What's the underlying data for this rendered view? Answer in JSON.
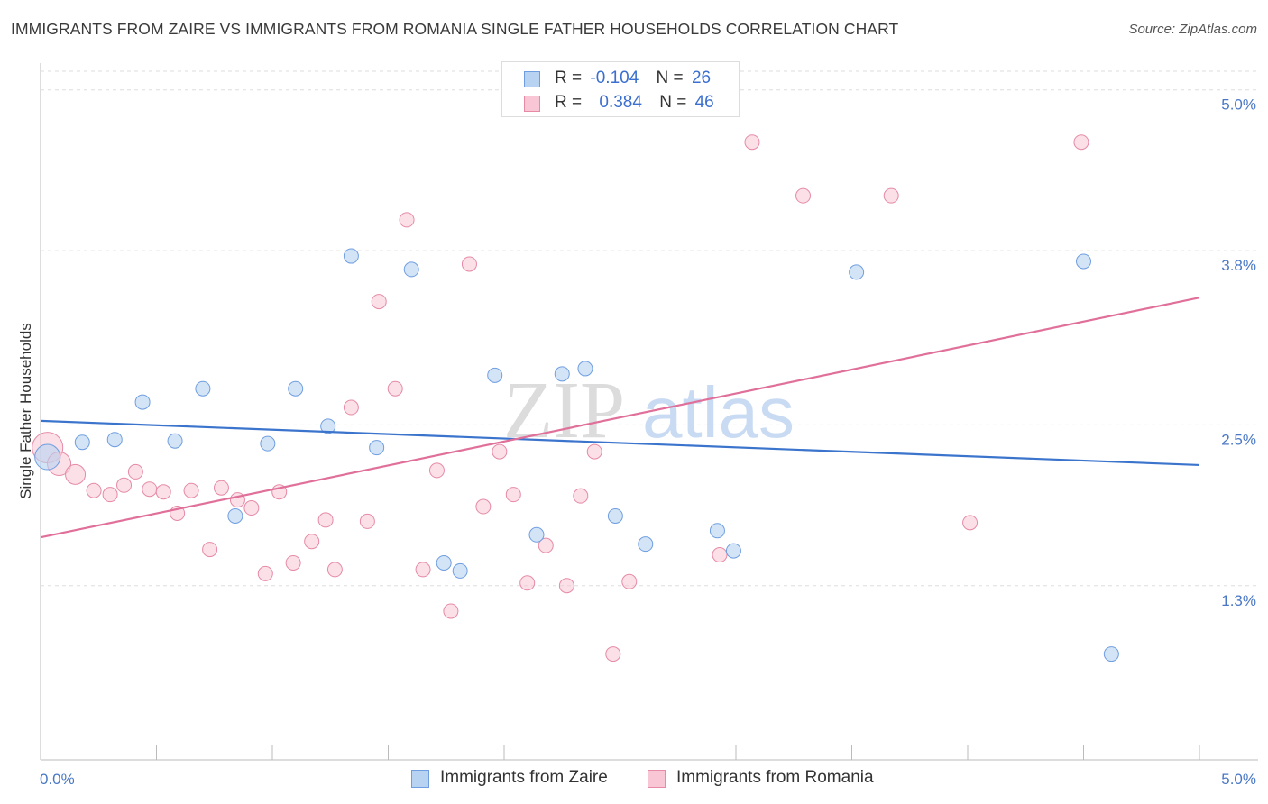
{
  "title": "IMMIGRANTS FROM ZAIRE VS IMMIGRANTS FROM ROMANIA SINGLE FATHER HOUSEHOLDS CORRELATION CHART",
  "source": "Source: ZipAtlas.com",
  "watermark": {
    "zip": "ZIP",
    "atlas": "atlas"
  },
  "colors": {
    "zaire_fill": "#b8d2f2",
    "zaire_stroke": "#6f9ee0",
    "zaire_line": "#3b74cc",
    "romania_fill": "#f8c6d4",
    "romania_stroke": "#e68aa6",
    "romania_line": "#e0709a",
    "axis_label": "#4a78c5",
    "grid": "#dddddd"
  },
  "legend": {
    "rows": [
      {
        "r_label": "R =",
        "r_value": "-0.104",
        "n_label": "N =",
        "n_value": "26"
      },
      {
        "r_label": "R =",
        "r_value": "0.384",
        "n_label": "N =",
        "n_value": "46"
      }
    ]
  },
  "chart_data": {
    "type": "scatter",
    "title": "IMMIGRANTS FROM ZAIRE VS IMMIGRANTS FROM ROMANIA SINGLE FATHER HOUSEHOLDS CORRELATION CHART",
    "xlabel": "",
    "ylabel": "Single Father Households",
    "xlim": [
      0,
      5.0
    ],
    "ylim": [
      0,
      5.2
    ],
    "x_tick_labels": [
      "0.0%",
      "5.0%"
    ],
    "y_ticks": [
      1.3,
      2.5,
      3.8,
      5.0
    ],
    "y_tick_labels": [
      "1.3%",
      "2.5%",
      "3.8%",
      "5.0%"
    ],
    "series": [
      {
        "name": "Immigrants from Zaire",
        "points": [
          [
            0.03,
            2.26
          ],
          [
            0.18,
            2.37
          ],
          [
            0.32,
            2.39
          ],
          [
            0.44,
            2.67
          ],
          [
            0.58,
            2.38
          ],
          [
            0.7,
            2.77
          ],
          [
            0.84,
            1.82
          ],
          [
            0.98,
            2.36
          ],
          [
            1.1,
            2.77
          ],
          [
            1.24,
            2.49
          ],
          [
            1.34,
            3.76
          ],
          [
            1.45,
            2.33
          ],
          [
            1.6,
            3.66
          ],
          [
            1.74,
            1.47
          ],
          [
            1.81,
            1.41
          ],
          [
            1.96,
            2.87
          ],
          [
            2.14,
            1.68
          ],
          [
            2.25,
            2.88
          ],
          [
            2.35,
            2.92
          ],
          [
            2.48,
            1.82
          ],
          [
            2.61,
            1.61
          ],
          [
            2.92,
            1.71
          ],
          [
            2.99,
            1.56
          ],
          [
            3.52,
            3.64
          ],
          [
            4.5,
            3.72
          ],
          [
            4.62,
            0.79
          ]
        ],
        "trend": [
          [
            0.0,
            2.53
          ],
          [
            5.0,
            2.2
          ]
        ]
      },
      {
        "name": "Immigrants from Romania",
        "points": [
          [
            0.03,
            2.33
          ],
          [
            0.08,
            2.21
          ],
          [
            0.15,
            2.13
          ],
          [
            0.23,
            2.01
          ],
          [
            0.3,
            1.98
          ],
          [
            0.36,
            2.05
          ],
          [
            0.41,
            2.15
          ],
          [
            0.47,
            2.02
          ],
          [
            0.53,
            2.0
          ],
          [
            0.59,
            1.84
          ],
          [
            0.65,
            2.01
          ],
          [
            0.73,
            1.57
          ],
          [
            0.78,
            2.03
          ],
          [
            0.85,
            1.94
          ],
          [
            0.91,
            1.88
          ],
          [
            0.97,
            1.39
          ],
          [
            1.03,
            2.0
          ],
          [
            1.09,
            1.47
          ],
          [
            1.17,
            1.63
          ],
          [
            1.23,
            1.79
          ],
          [
            1.27,
            1.42
          ],
          [
            1.34,
            2.63
          ],
          [
            1.41,
            1.78
          ],
          [
            1.46,
            3.42
          ],
          [
            1.53,
            2.77
          ],
          [
            1.58,
            4.03
          ],
          [
            1.65,
            1.42
          ],
          [
            1.71,
            2.16
          ],
          [
            1.77,
            1.11
          ],
          [
            1.85,
            3.7
          ],
          [
            1.91,
            1.89
          ],
          [
            1.98,
            2.3
          ],
          [
            2.04,
            1.98
          ],
          [
            2.1,
            1.32
          ],
          [
            2.18,
            1.6
          ],
          [
            2.27,
            1.3
          ],
          [
            2.33,
            1.97
          ],
          [
            2.39,
            2.3
          ],
          [
            2.47,
            0.79
          ],
          [
            2.54,
            1.33
          ],
          [
            2.93,
            1.53
          ],
          [
            3.07,
            4.61
          ],
          [
            3.29,
            4.21
          ],
          [
            3.67,
            4.21
          ],
          [
            4.01,
            1.77
          ],
          [
            4.49,
            4.61
          ]
        ],
        "trend": [
          [
            0.0,
            1.66
          ],
          [
            5.0,
            3.45
          ]
        ]
      }
    ],
    "legend_position": "top-center"
  }
}
